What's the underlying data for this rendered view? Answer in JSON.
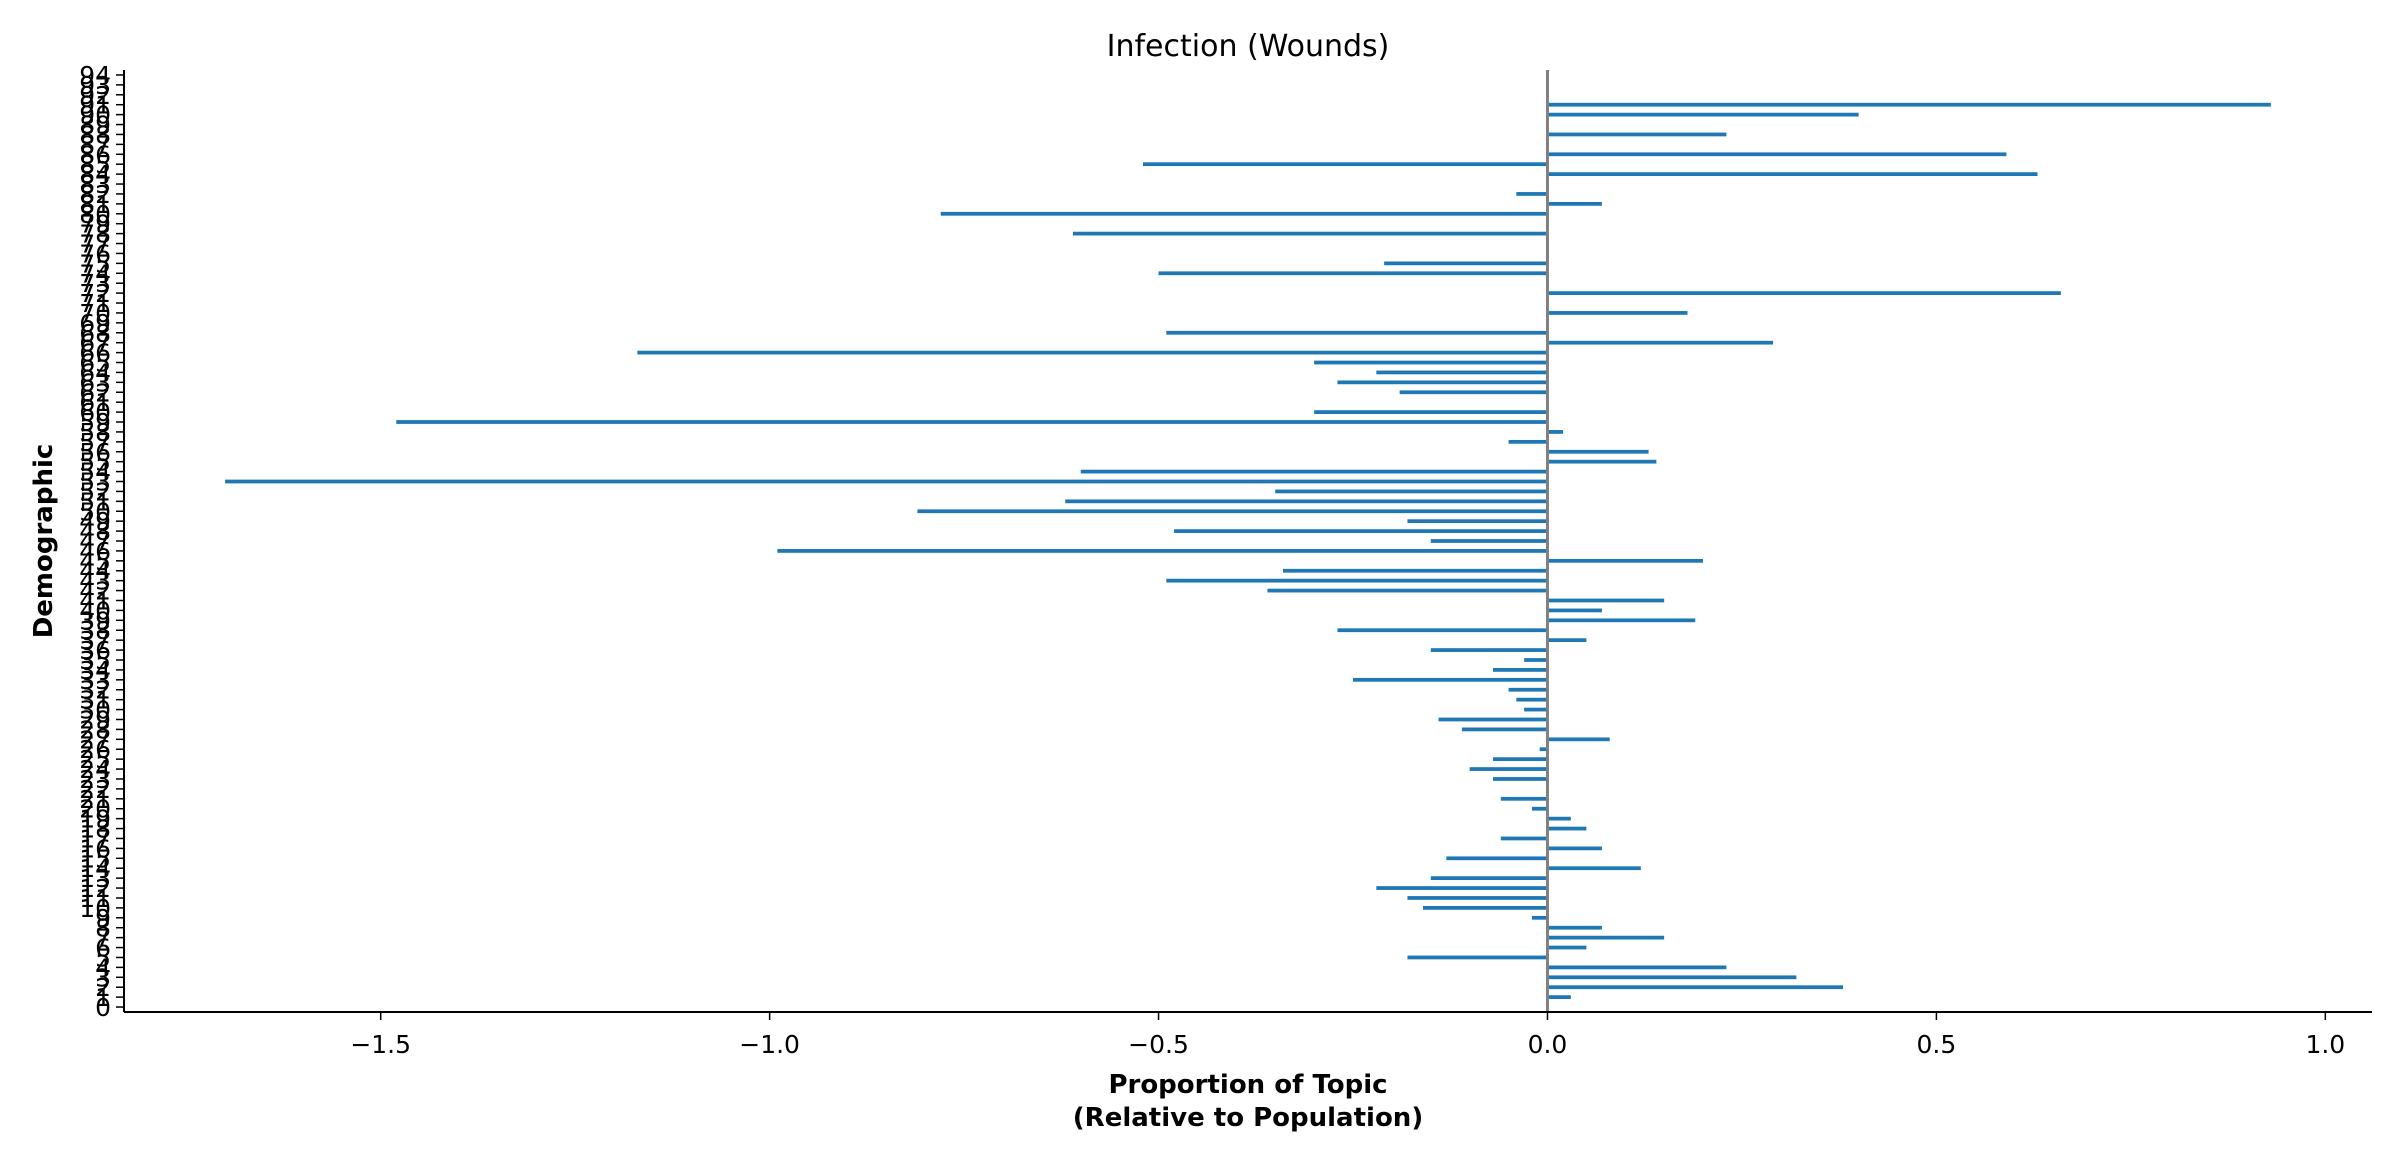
{
  "chart_data": {
    "type": "bar",
    "orientation": "horizontal",
    "title": "Infection (Wounds)",
    "xlabel": "Proportion of Topic\n(Relative to Population)",
    "ylabel": "Demographic",
    "xlim": [
      -1.83,
      1.06
    ],
    "ylim": [
      -0.5,
      94.5
    ],
    "xticks": [
      -1.5,
      -1.0,
      -0.5,
      0.0,
      0.5,
      1.0
    ],
    "xtick_labels": [
      "−1.5",
      "−1.0",
      "−0.5",
      "0.0",
      "0.5",
      "1.0"
    ],
    "grid": false,
    "legend": "none",
    "bar_color": "#1f77b4",
    "zero_line_color": "#808080",
    "series": [
      {
        "values": [
          0.0,
          0.03,
          0.38,
          0.32,
          0.23,
          -0.18,
          0.05,
          0.15,
          0.07,
          -0.02,
          -0.16,
          -0.18,
          -0.22,
          -0.15,
          0.12,
          -0.13,
          0.07,
          -0.06,
          0.05,
          0.03,
          -0.02,
          -0.06,
          0.0,
          -0.07,
          -0.1,
          -0.07,
          -0.01,
          0.08,
          -0.11,
          -0.14,
          -0.03,
          -0.04,
          -0.05,
          -0.25,
          -0.07,
          -0.03,
          -0.15,
          0.05,
          -0.27,
          0.19,
          0.07,
          0.15,
          -0.36,
          -0.49,
          -0.34,
          0.2,
          -0.99,
          -0.15,
          -0.48,
          -0.18,
          -0.81,
          -0.62,
          -0.35,
          -1.7,
          -0.6,
          0.14,
          0.13,
          -0.05,
          0.02,
          -1.48,
          -0.3,
          0.0,
          -0.19,
          -0.27,
          -0.22,
          -0.3,
          -1.17,
          0.29,
          -0.49,
          0.0,
          0.18,
          0.0,
          0.66,
          0.0,
          -0.5,
          -0.21,
          0.0,
          0.0,
          -0.61,
          0.0,
          -0.78,
          0.07,
          -0.04,
          0.0,
          0.63,
          -0.52,
          0.59,
          0.0,
          0.23,
          0.0,
          0.4,
          0.93,
          0.0,
          0.0,
          0.0
        ]
      }
    ],
    "categories": [
      "0",
      "1",
      "2",
      "3",
      "4",
      "5",
      "6",
      "7",
      "8",
      "9",
      "10",
      "11",
      "12",
      "13",
      "14",
      "15",
      "16",
      "17",
      "18",
      "19",
      "20",
      "21",
      "22",
      "23",
      "24",
      "25",
      "26",
      "27",
      "28",
      "29",
      "30",
      "31",
      "32",
      "33",
      "34",
      "35",
      "36",
      "37",
      "38",
      "39",
      "40",
      "41",
      "42",
      "43",
      "44",
      "45",
      "46",
      "47",
      "48",
      "49",
      "50",
      "51",
      "52",
      "53",
      "54",
      "55",
      "56",
      "57",
      "58",
      "59",
      "60",
      "61",
      "62",
      "63",
      "64",
      "65",
      "66",
      "67",
      "68",
      "69",
      "70",
      "71",
      "72",
      "73",
      "74",
      "75",
      "76",
      "77",
      "78",
      "79",
      "80",
      "81",
      "82",
      "83",
      "84",
      "85",
      "86",
      "87",
      "88",
      "89",
      "90",
      "91",
      "92",
      "93",
      "94"
    ]
  }
}
